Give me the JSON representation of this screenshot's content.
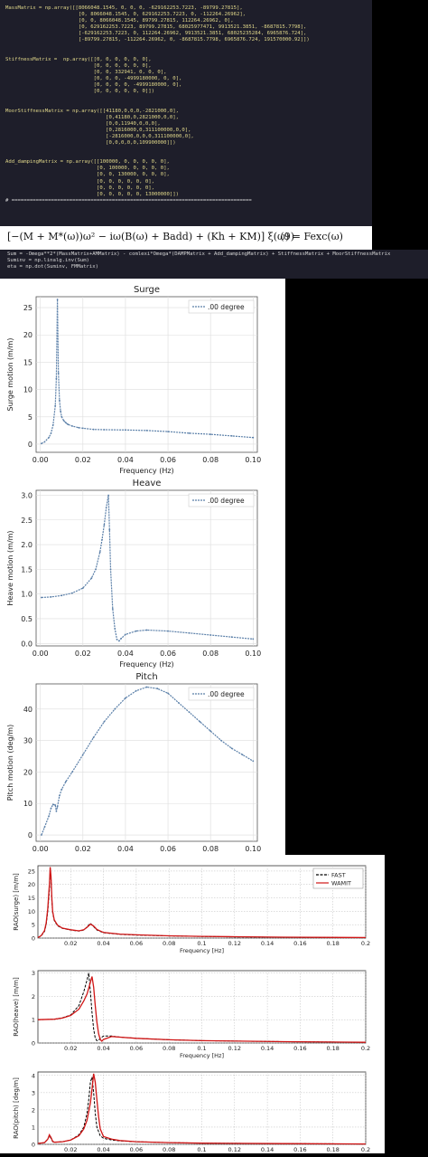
{
  "code_top": {
    "lines": [
      "MassMatrix = np.array([[8066048.1545, 0, 0, 0, -629162253.7223, -89799.27815],",
      "                        [0, 8066048.1545, 0, 629162253.7223, 0, -112264.26962],",
      "                        [0, 0, 8066048.1545, 89799.27815, 112264.26962, 0],",
      "                        [0, 629162253.7223, 89799.27815, 68025977471, 9913521.3851, -8687815.7798],",
      "                        [-629162253.7223, 0, 112264.26962, 9913521.3851, 68025235284, 6965876.724],",
      "                        [-89799.27815, -112264.26962, 0, -8687815.7798, 6965876.724, 191570000.92]])",
      "",
      "",
      "StiffnessMatrix =  np.array([[0, 0, 0, 0, 0, 0],",
      "                             [0, 0, 0, 0, 0, 0],",
      "                             [0, 0, 332941, 0, 0, 0],",
      "                             [0, 0, 0, -4999180000, 0, 0],",
      "                             [0, 0, 0, 0, -4999180000, 0],",
      "                             [0, 0, 0, 0, 0, 0]])",
      "",
      "",
      "MoorStiffnessMatrix = np.array([[41180,0,0,0,-2821000,0],",
      "                                 [0,41180,0,2821000,0,0],",
      "                                 [0,0,11940,0,0,0],",
      "                                 [0,2816000,0,311100000,0,0],",
      "                                 [-2816000,0,0,0,311100000,0],",
      "                                 [0,0,0,0,0,109900000]])",
      "",
      "",
      "Add_dampingMatrix = np.array([[100000, 0, 0, 0, 0, 0],",
      "                              [0, 100000, 0, 0, 0, 0],",
      "                              [0, 0, 130000, 0, 0, 0],",
      "                              [0, 0, 0, 0, 0, 0],",
      "                              [0, 0, 0, 0, 0, 0],",
      "                              [0, 0, 0, 0, 0, 13000000]])",
      "# ==============================================================================="
    ]
  },
  "equation": {
    "text": "[−(M + M*(ω))ω² − iω(B(ω) + Badd) + (Kh + KM)] ξ(ω) = Fexc(ω)",
    "number": "(9)"
  },
  "code_bottom": {
    "lines": [
      "Sum = -Omega**2*(MassMatrix+AMMatrix) - comlexi*Omega*(DAMPMatrix + Add_dampingMatrix) + StiffnessMatrix + MoorStiffnessMatrix",
      "Suminv = np.linalg.inv(Sum)",
      "eta = np.dot(Suminv, FMMatrix)"
    ]
  },
  "chart_data": [
    {
      "type": "line",
      "title": "Surge",
      "xlabel": "Frequency (Hz)",
      "ylabel": "Surge motion (m/m)",
      "xlim": [
        -0.002,
        0.102
      ],
      "ylim": [
        -1.5,
        27
      ],
      "xticks": [
        "0.00",
        "0.02",
        "0.04",
        "0.06",
        "0.08",
        "0.10"
      ],
      "yticks": [
        "0",
        "5",
        "10",
        "15",
        "20",
        "25"
      ],
      "legend": "top-right",
      "grid": true,
      "series": [
        {
          "name": ".00 degree",
          "color": "#5a7fa8",
          "x": [
            0.0005,
            0.002,
            0.004,
            0.005,
            0.006,
            0.007,
            0.0075,
            0.008,
            0.0085,
            0.009,
            0.0095,
            0.01,
            0.011,
            0.012,
            0.013,
            0.015,
            0.018,
            0.02,
            0.025,
            0.03,
            0.04,
            0.05,
            0.06,
            0.07,
            0.08,
            0.09,
            0.1
          ],
          "y": [
            0.1,
            0.4,
            1.2,
            2.0,
            3.5,
            7.0,
            12.0,
            26.5,
            13.0,
            8.0,
            6.0,
            5.0,
            4.3,
            3.9,
            3.6,
            3.3,
            3.0,
            2.9,
            2.7,
            2.65,
            2.6,
            2.5,
            2.3,
            2.0,
            1.8,
            1.5,
            1.2
          ]
        }
      ]
    },
    {
      "type": "line",
      "title": "Heave",
      "xlabel": "Frequency (Hz)",
      "ylabel": "Heave motion (m/m)",
      "xlim": [
        -0.002,
        0.102
      ],
      "ylim": [
        -0.05,
        3.1
      ],
      "xticks": [
        "0.00",
        "0.02",
        "0.04",
        "0.06",
        "0.08",
        "0.10"
      ],
      "yticks": [
        "0.0",
        "0.5",
        "1.0",
        "1.5",
        "2.0",
        "2.5",
        "3.0"
      ],
      "legend": "top-right",
      "grid": true,
      "series": [
        {
          "name": ".00 degree",
          "color": "#5a7fa8",
          "x": [
            0.0005,
            0.005,
            0.01,
            0.015,
            0.02,
            0.024,
            0.026,
            0.028,
            0.029,
            0.03,
            0.031,
            0.032,
            0.0325,
            0.033,
            0.034,
            0.035,
            0.036,
            0.037,
            0.038,
            0.04,
            0.045,
            0.05,
            0.06,
            0.07,
            0.08,
            0.09,
            0.1
          ],
          "y": [
            0.93,
            0.94,
            0.97,
            1.02,
            1.12,
            1.32,
            1.5,
            1.85,
            2.1,
            2.4,
            2.75,
            3.0,
            2.3,
            1.5,
            0.7,
            0.3,
            0.08,
            0.05,
            0.1,
            0.18,
            0.25,
            0.27,
            0.25,
            0.21,
            0.17,
            0.13,
            0.09
          ]
        }
      ]
    },
    {
      "type": "line",
      "title": "Pitch",
      "xlabel": "Frequency (Hz)",
      "ylabel": "Pitch motion (deg/m)",
      "xlim": [
        -0.002,
        0.102
      ],
      "ylim": [
        -2,
        48
      ],
      "xticks": [
        "0.00",
        "0.02",
        "0.04",
        "0.06",
        "0.08",
        "0.10"
      ],
      "yticks": [
        "0",
        "10",
        "20",
        "30",
        "40"
      ],
      "legend": "top-right",
      "grid": true,
      "series": [
        {
          "name": ".00 degree",
          "color": "#5a7fa8",
          "x": [
            0.0005,
            0.002,
            0.004,
            0.005,
            0.006,
            0.007,
            0.0075,
            0.008,
            0.009,
            0.01,
            0.012,
            0.015,
            0.02,
            0.025,
            0.03,
            0.035,
            0.04,
            0.045,
            0.05,
            0.055,
            0.06,
            0.065,
            0.07,
            0.075,
            0.08,
            0.085,
            0.09,
            0.095,
            0.1
          ],
          "y": [
            0.0,
            2.5,
            6.0,
            8.5,
            9.7,
            9.5,
            7.5,
            9.0,
            12.5,
            14.5,
            17.0,
            20.0,
            25.5,
            31.0,
            36.0,
            40.0,
            43.5,
            45.8,
            47.0,
            46.5,
            45.0,
            42.0,
            39.0,
            36.0,
            33.0,
            30.0,
            27.5,
            25.5,
            23.5
          ]
        }
      ]
    },
    {
      "type": "line",
      "ylabel": "RAO(surge) [m/m]",
      "xlabel": "Frequency [Hz]",
      "xlim": [
        0,
        0.2
      ],
      "ylim": [
        0,
        27
      ],
      "xticks": [
        "0.02",
        "0.04",
        "0.06",
        "0.08",
        "0.1",
        "0.12",
        "0.14",
        "0.16",
        "0.18",
        "0.2"
      ],
      "yticks": [
        "0",
        "5",
        "10",
        "15",
        "20",
        "25"
      ],
      "legend": "top-right",
      "grid": true,
      "series": [
        {
          "name": "FAST",
          "color": "#000000",
          "x": [
            0.0,
            0.002,
            0.004,
            0.005,
            0.006,
            0.007,
            0.0075,
            0.008,
            0.0085,
            0.009,
            0.01,
            0.012,
            0.015,
            0.02,
            0.025,
            0.028,
            0.03,
            0.032,
            0.034,
            0.036,
            0.04,
            0.05,
            0.06,
            0.08,
            0.1,
            0.12,
            0.15,
            0.2
          ],
          "y": [
            0.2,
            0.8,
            2.5,
            5.0,
            10.0,
            18.0,
            25.0,
            22.0,
            14.0,
            9.5,
            6.5,
            4.6,
            3.6,
            3.0,
            2.6,
            3.0,
            4.2,
            5.5,
            4.3,
            3.0,
            2.0,
            1.4,
            1.1,
            0.8,
            0.6,
            0.45,
            0.3,
            0.15
          ]
        },
        {
          "name": "WAMIT",
          "color": "#d01515",
          "x": [
            0.0,
            0.002,
            0.004,
            0.005,
            0.006,
            0.007,
            0.0075,
            0.008,
            0.0085,
            0.009,
            0.01,
            0.012,
            0.015,
            0.02,
            0.025,
            0.028,
            0.03,
            0.032,
            0.034,
            0.036,
            0.04,
            0.05,
            0.06,
            0.08,
            0.1,
            0.12,
            0.15,
            0.2
          ],
          "y": [
            0.2,
            0.9,
            2.8,
            5.5,
            11.0,
            20.0,
            26.5,
            23.0,
            15.0,
            10.0,
            6.8,
            4.8,
            3.7,
            3.1,
            2.7,
            3.1,
            4.0,
            5.2,
            4.5,
            3.2,
            2.1,
            1.5,
            1.2,
            0.85,
            0.65,
            0.5,
            0.35,
            0.2
          ]
        }
      ]
    },
    {
      "type": "line",
      "ylabel": "RAO(heave) [m/m]",
      "xlabel": "Frequency [Hz]",
      "xlim": [
        0,
        0.2
      ],
      "ylim": [
        0,
        3.1
      ],
      "xticks": [
        "0.02",
        "0.04",
        "0.06",
        "0.08",
        "0.1",
        "0.12",
        "0.14",
        "0.16",
        "0.18",
        "0.2"
      ],
      "yticks": [
        "0",
        "1",
        "2",
        "3"
      ],
      "grid": true,
      "series": [
        {
          "name": "FAST",
          "color": "#000000",
          "x": [
            0.0,
            0.01,
            0.015,
            0.02,
            0.025,
            0.028,
            0.03,
            0.031,
            0.032,
            0.033,
            0.034,
            0.035,
            0.036,
            0.037,
            0.038,
            0.04,
            0.045,
            0.05,
            0.06,
            0.08,
            0.1,
            0.15,
            0.2
          ],
          "y": [
            1.0,
            1.02,
            1.08,
            1.2,
            1.6,
            2.2,
            2.7,
            3.0,
            2.2,
            1.3,
            0.6,
            0.2,
            0.1,
            0.12,
            0.2,
            0.3,
            0.3,
            0.25,
            0.2,
            0.14,
            0.1,
            0.06,
            0.03
          ]
        },
        {
          "name": "WAMIT",
          "color": "#d01515",
          "x": [
            0.0,
            0.01,
            0.015,
            0.02,
            0.025,
            0.028,
            0.03,
            0.032,
            0.033,
            0.034,
            0.035,
            0.036,
            0.037,
            0.038,
            0.039,
            0.04,
            0.045,
            0.05,
            0.06,
            0.08,
            0.1,
            0.15,
            0.2
          ],
          "y": [
            1.0,
            1.02,
            1.07,
            1.18,
            1.45,
            1.8,
            2.1,
            2.6,
            2.85,
            2.4,
            1.6,
            0.9,
            0.4,
            0.15,
            0.08,
            0.15,
            0.28,
            0.25,
            0.2,
            0.14,
            0.1,
            0.06,
            0.03
          ]
        }
      ]
    },
    {
      "type": "line",
      "ylabel": "RAO(pitch) [deg/m]",
      "xlabel": "Frequency [Hz]",
      "xlim": [
        0,
        0.2
      ],
      "ylim": [
        0,
        4.2
      ],
      "xticks": [
        "0.02",
        "0.04",
        "0.06",
        "0.08",
        "0.1",
        "0.12",
        "0.14",
        "0.16",
        "0.18",
        "0.2"
      ],
      "yticks": [
        "0",
        "1",
        "2",
        "3",
        "4"
      ],
      "grid": true,
      "series": [
        {
          "name": "FAST",
          "color": "#000000",
          "x": [
            0.0,
            0.004,
            0.006,
            0.007,
            0.008,
            0.009,
            0.01,
            0.015,
            0.02,
            0.025,
            0.028,
            0.03,
            0.031,
            0.032,
            0.033,
            0.034,
            0.035,
            0.036,
            0.038,
            0.04,
            0.045,
            0.05,
            0.06,
            0.08,
            0.1,
            0.15,
            0.2
          ],
          "y": [
            0.05,
            0.1,
            0.3,
            0.5,
            0.35,
            0.15,
            0.12,
            0.15,
            0.25,
            0.55,
            1.0,
            1.8,
            2.6,
            3.6,
            3.9,
            3.0,
            1.8,
            1.0,
            0.5,
            0.35,
            0.25,
            0.2,
            0.15,
            0.1,
            0.07,
            0.04,
            0.02
          ]
        },
        {
          "name": "WAMIT",
          "color": "#d01515",
          "x": [
            0.0,
            0.004,
            0.006,
            0.007,
            0.008,
            0.009,
            0.01,
            0.015,
            0.02,
            0.025,
            0.028,
            0.03,
            0.032,
            0.033,
            0.034,
            0.035,
            0.036,
            0.037,
            0.038,
            0.04,
            0.045,
            0.05,
            0.06,
            0.08,
            0.1,
            0.15,
            0.2
          ],
          "y": [
            0.05,
            0.1,
            0.3,
            0.55,
            0.4,
            0.18,
            0.12,
            0.15,
            0.25,
            0.5,
            0.9,
            1.4,
            2.4,
            3.2,
            4.1,
            3.6,
            2.6,
            1.6,
            0.9,
            0.45,
            0.3,
            0.22,
            0.15,
            0.1,
            0.07,
            0.04,
            0.02
          ]
        }
      ]
    }
  ]
}
